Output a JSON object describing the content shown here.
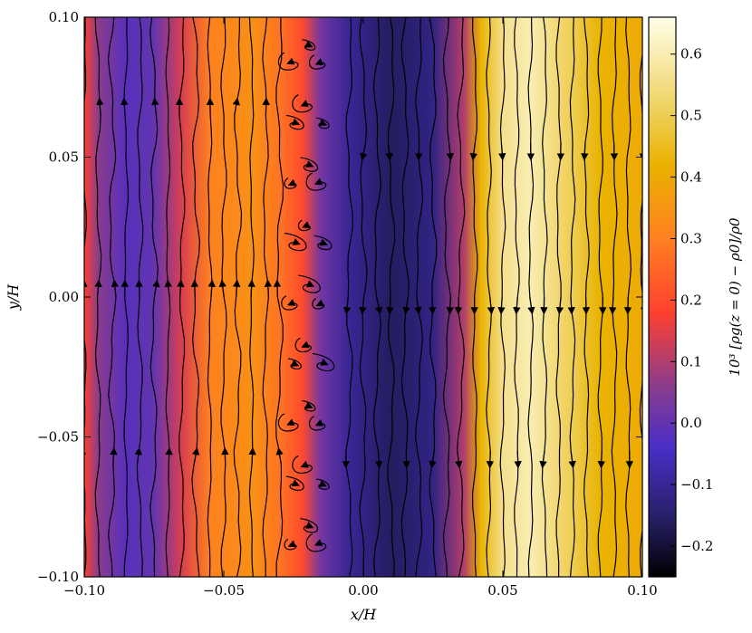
{
  "chart_data": {
    "type": "heatmap",
    "title": "",
    "xlabel": "x/H",
    "ylabel": "y/H",
    "xlim": [
      -0.1,
      0.1
    ],
    "ylim": [
      -0.1,
      0.1
    ],
    "x_ticks": [
      -0.1,
      -0.05,
      0.0,
      0.05,
      0.1
    ],
    "x_tick_labels": [
      "−0.10",
      "−0.05",
      "0.00",
      "0.05",
      "0.10"
    ],
    "y_ticks": [
      -0.1,
      -0.05,
      0.0,
      0.05,
      0.1
    ],
    "y_tick_labels": [
      "−0.10",
      "−0.05",
      "0.00",
      "0.05",
      "0.10"
    ],
    "colorbar": {
      "label": "10³ [ρg(z = 0) − ρ0]/ρ0",
      "range": [
        -0.25,
        0.66
      ],
      "ticks": [
        -0.2,
        -0.1,
        0.0,
        0.1,
        0.2,
        0.3,
        0.4,
        0.5,
        0.6
      ],
      "tick_labels": [
        "−0.2",
        "−0.1",
        "0.0",
        "0.1",
        "0.2",
        "0.3",
        "0.4",
        "0.5",
        "0.6"
      ],
      "colormap": "CMRmap-like (black → indigo → red → orange → yellow → white)",
      "stops": [
        {
          "value": -0.25,
          "color": "#000000"
        },
        {
          "value": -0.15,
          "color": "#28206a"
        },
        {
          "value": -0.04,
          "color": "#4a2ec8"
        },
        {
          "value": 0.06,
          "color": "#8a3c8c"
        },
        {
          "value": 0.18,
          "color": "#ff4030"
        },
        {
          "value": 0.3,
          "color": "#ff8020"
        },
        {
          "value": 0.42,
          "color": "#eab200"
        },
        {
          "value": 0.52,
          "color": "#efd468"
        },
        {
          "value": 0.66,
          "color": "#ffffe8"
        }
      ]
    },
    "density_profile": {
      "x": [
        -0.1,
        -0.095,
        -0.085,
        -0.075,
        -0.065,
        -0.055,
        -0.04,
        -0.03,
        -0.022,
        -0.015,
        -0.005,
        0.01,
        0.025,
        0.036,
        0.042,
        0.05,
        0.06,
        0.075,
        0.085,
        0.1
      ],
      "values": [
        0.18,
        0.06,
        -0.02,
        0.0,
        0.14,
        0.3,
        0.34,
        0.28,
        0.2,
        0.02,
        -0.1,
        -0.16,
        -0.12,
        0.1,
        0.42,
        0.56,
        0.6,
        0.5,
        0.42,
        0.4
      ]
    },
    "streamlines": {
      "description": "flow streamlines of gas velocity; upward flow for x < -0.02, chaotic vortices near x ≈ -0.02, downward flow for x > -0.005",
      "upward_x": [
        -0.1,
        -0.095,
        -0.09,
        -0.085,
        -0.08,
        -0.075,
        -0.07,
        -0.065,
        -0.06,
        -0.055,
        -0.05,
        -0.045,
        -0.04,
        -0.035,
        -0.03
      ],
      "vortex_x": [
        -0.025,
        -0.02,
        -0.015
      ],
      "downward_x": [
        -0.005,
        0.0,
        0.005,
        0.01,
        0.015,
        0.02,
        0.025,
        0.03,
        0.035,
        0.04,
        0.045,
        0.05,
        0.055,
        0.06,
        0.065,
        0.07,
        0.075,
        0.08,
        0.085,
        0.09,
        0.095,
        0.1
      ]
    },
    "grid": false,
    "legend": "none"
  }
}
